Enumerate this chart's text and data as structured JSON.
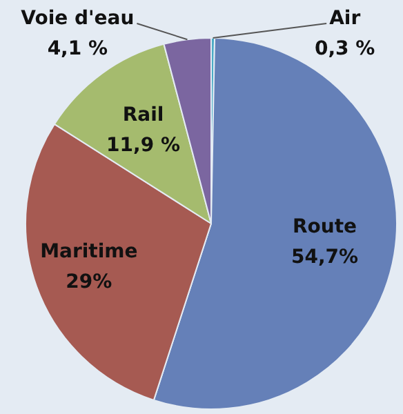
{
  "chart_data": {
    "type": "pie",
    "categories": [
      "Air",
      "Route",
      "Maritime",
      "Rail",
      "Voie d'eau"
    ],
    "values": [
      0.3,
      54.7,
      29,
      11.9,
      4.1
    ],
    "colors": [
      "#4bacc6",
      "#6580b8",
      "#a65a52",
      "#a5bb6e",
      "#7b66a0"
    ],
    "value_labels": [
      "0,3 %",
      "54,7%",
      "29%",
      "11,9 %",
      "4,1 %"
    ]
  }
}
